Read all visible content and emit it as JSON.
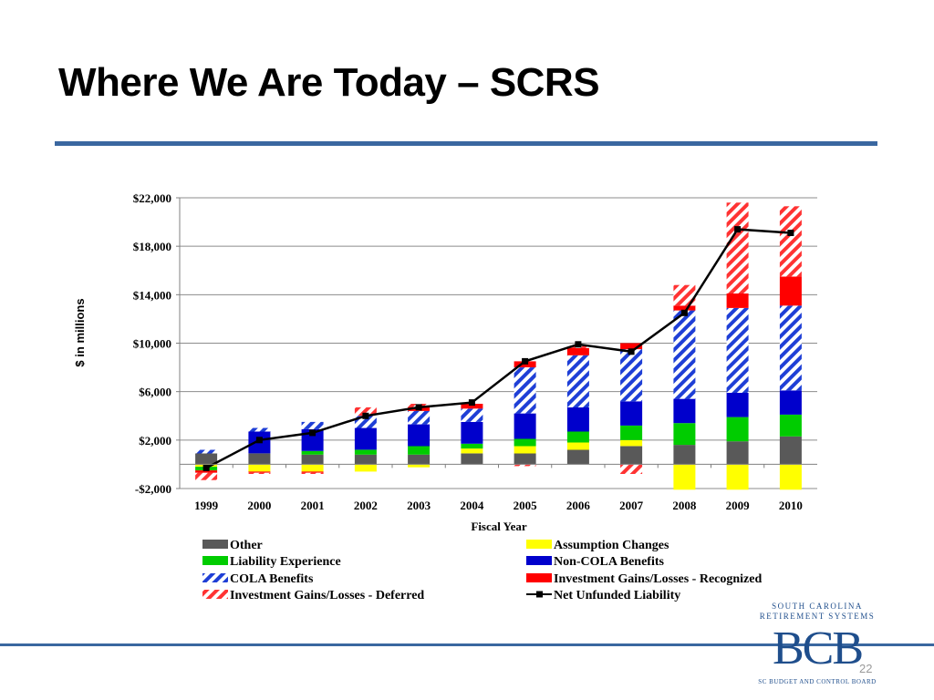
{
  "slide": {
    "title": "Where We Are Today – SCRS",
    "page_number": "22"
  },
  "logo": {
    "line1": "SOUTH CAROLINA",
    "line2": "RETIREMENT SYSTEMS",
    "letters": "BCB",
    "footer": "SC BUDGET AND CONTROL BOARD"
  },
  "colors": {
    "other": "#595959",
    "assumption": "#ffff00",
    "liability": "#00cc00",
    "noncola": "#0000cc",
    "cola": "#1f3fd6",
    "recognized": "#ff0000",
    "deferred": "#ff3333",
    "net": "#000000",
    "accent": "#3a67a0"
  },
  "chart_data": {
    "type": "bar",
    "stacked": true,
    "ylabel": "$ in millions",
    "xlabel": "Fiscal Year",
    "ylim": [
      -2000,
      22000
    ],
    "yticks": [
      -2000,
      2000,
      6000,
      10000,
      14000,
      18000,
      22000
    ],
    "ytick_labels": [
      "-$2,000",
      "$2,000",
      "$6,000",
      "$10,000",
      "$14,000",
      "$18,000",
      "$22,000"
    ],
    "grid": true,
    "legend_position": "bottom",
    "categories": [
      "1999",
      "2000",
      "2001",
      "2002",
      "2003",
      "2004",
      "2005",
      "2006",
      "2007",
      "2008",
      "2009",
      "2010"
    ],
    "series": [
      {
        "name": "Other",
        "key": "other",
        "pattern": "solid",
        "values": [
          900,
          900,
          800,
          800,
          800,
          900,
          900,
          1200,
          1500,
          1600,
          1900,
          2300
        ]
      },
      {
        "name": "Assumption Changes",
        "key": "assumption",
        "pattern": "solid",
        "values": [
          -200,
          -600,
          -600,
          -600,
          -250,
          400,
          600,
          600,
          500,
          -2100,
          -2100,
          -2100
        ]
      },
      {
        "name": "Liability Experience",
        "key": "liability",
        "pattern": "solid",
        "values": [
          -300,
          0,
          300,
          400,
          700,
          400,
          600,
          900,
          1200,
          1800,
          2000,
          1800
        ]
      },
      {
        "name": "Non-COLA Benefits",
        "key": "noncola",
        "pattern": "solid",
        "values": [
          0,
          1800,
          1800,
          1800,
          1800,
          1800,
          2100,
          2000,
          2000,
          2000,
          2000,
          2000
        ]
      },
      {
        "name": "COLA Benefits",
        "key": "cola",
        "pattern": "hatch",
        "values": [
          300,
          300,
          600,
          1000,
          1100,
          1100,
          3800,
          4300,
          4300,
          7300,
          7000,
          7000
        ]
      },
      {
        "name": "Investment Gains/Losses - Recognized",
        "key": "recognized",
        "pattern": "solid",
        "values": [
          -200,
          -100,
          -100,
          0,
          300,
          400,
          500,
          600,
          500,
          400,
          1200,
          2400
        ]
      },
      {
        "name": "Investment Gains/Losses - Deferred",
        "key": "deferred",
        "pattern": "hatch",
        "values": [
          -600,
          -100,
          -100,
          700,
          300,
          0,
          -150,
          200,
          -800,
          1700,
          7500,
          5800
        ]
      }
    ],
    "line_series": {
      "name": "Net Unfunded Liability",
      "key": "net",
      "values": [
        -300,
        2000,
        2600,
        4000,
        4700,
        5100,
        8500,
        9900,
        9300,
        12500,
        19400,
        19100
      ]
    }
  }
}
